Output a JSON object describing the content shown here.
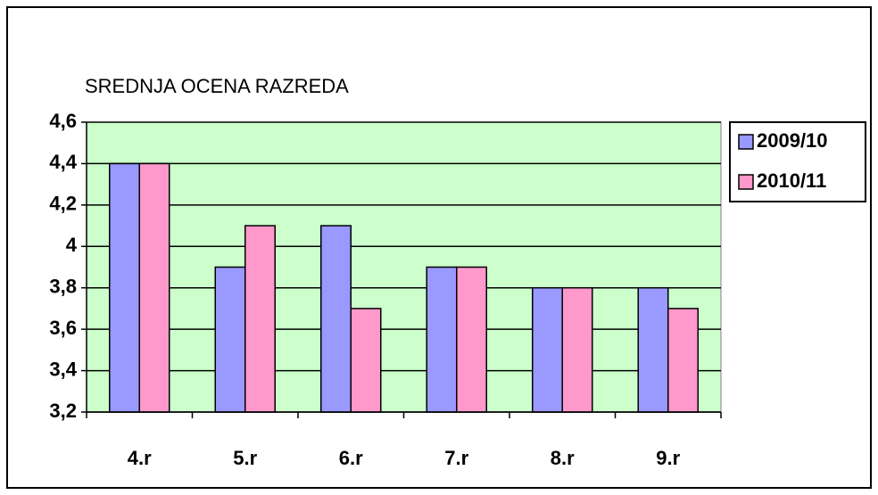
{
  "chart_data": {
    "type": "bar",
    "title": "SREDNJA OCENA RAZREDA",
    "categories": [
      "4.r",
      "5.r",
      "6.r",
      "7.r",
      "8.r",
      "9.r"
    ],
    "series": [
      {
        "name": "2009/10",
        "color": "#9999ff",
        "values": [
          4.4,
          3.9,
          4.1,
          3.9,
          3.8,
          3.8
        ]
      },
      {
        "name": "2010/11",
        "color": "#ff99cc",
        "values": [
          4.4,
          4.1,
          3.7,
          3.9,
          3.8,
          3.7
        ]
      }
    ],
    "ylim": [
      3.2,
      4.6
    ],
    "yticks": [
      {
        "value": 3.2,
        "label": "3,2"
      },
      {
        "value": 3.4,
        "label": "3,4"
      },
      {
        "value": 3.6,
        "label": "3,6"
      },
      {
        "value": 3.8,
        "label": "3,8"
      },
      4,
      {
        "value": 4.2,
        "label": "4,2"
      },
      {
        "value": 4.4,
        "label": "4,4"
      },
      {
        "value": 4.6,
        "label": "4,6"
      }
    ],
    "grid": true,
    "plot_background": "#ccffcc",
    "legend": "right"
  }
}
